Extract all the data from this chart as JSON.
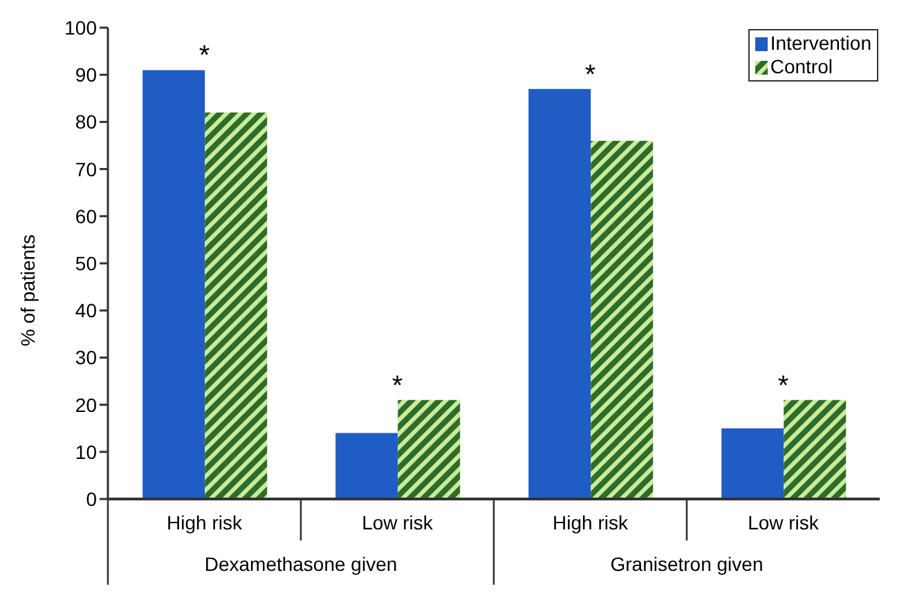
{
  "chart_data": {
    "type": "bar",
    "ylabel": "% of patients",
    "categories": [
      "High risk",
      "Low risk",
      "High risk",
      "Low risk"
    ],
    "series": [
      {
        "name": "Intervention",
        "color": "#1f5cc4",
        "values": [
          91,
          14,
          87,
          15
        ]
      },
      {
        "name": "Control",
        "color": "#2f6b2a",
        "values": [
          82,
          21,
          76,
          21
        ]
      }
    ],
    "ylim": [
      0,
      100
    ],
    "yticks": [
      0,
      10,
      20,
      30,
      40,
      50,
      60,
      70,
      80,
      90,
      100
    ],
    "grid": false,
    "legend": "top right",
    "annotations": [
      "*",
      "*",
      "*",
      "*",
      "Dexamethasone given",
      "Granisetron given"
    ]
  }
}
